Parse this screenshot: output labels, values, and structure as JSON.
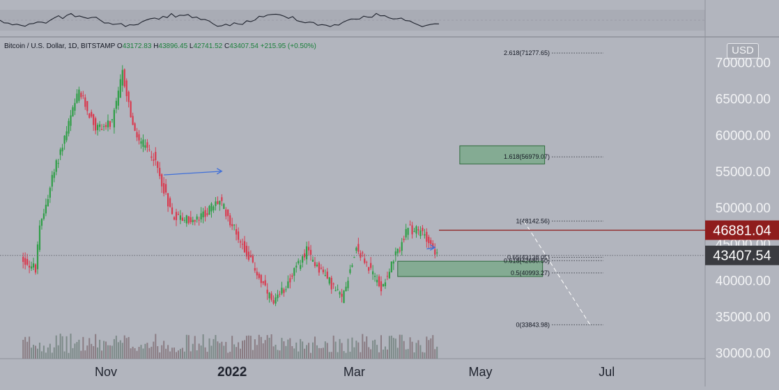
{
  "header": {
    "symbol": "Bitcoin / U.S. Dollar, 1D, BITSTAMP",
    "o_label": "O",
    "o_value": "43172.83",
    "h_label": "H",
    "h_value": "43896.45",
    "l_label": "L",
    "l_value": "42741.52",
    "c_label": "C",
    "c_value": "43407.54",
    "change": "+215.95 (+0.50%)"
  },
  "currency_button": "USD",
  "colors": {
    "background": "#b2b5be",
    "up": "#2e9e46",
    "down": "#d9394e",
    "price_label_bg": "#8f1d1d",
    "last_label_bg": "#3a3b40",
    "fib_box_fill": "#5fa36f",
    "arrow": "#3f6fd9"
  },
  "chart_data": {
    "type": "candlestick",
    "y_axis": {
      "ticks": [
        30000,
        35000,
        40000,
        45000,
        50000,
        55000,
        60000,
        65000,
        70000
      ],
      "tick_labels": [
        "30000.00",
        "35000.00",
        "40000.00",
        "45000.00",
        "50000.00",
        "55000.00",
        "60000.00",
        "65000.00",
        "70000.00"
      ],
      "ylim": [
        29000,
        73000
      ]
    },
    "x_axis": {
      "tick_labels": [
        "Nov",
        "2022",
        "Mar",
        "May",
        "Jul"
      ],
      "tick_dates": [
        "2021-11-01",
        "2022-01-01",
        "2022-03-01",
        "2022-05-01",
        "2022-07-01"
      ]
    },
    "price_path": [
      {
        "date": "2021-09-22",
        "price": 43000
      },
      {
        "date": "2021-09-29",
        "price": 41500
      },
      {
        "date": "2021-10-01",
        "price": 47000
      },
      {
        "date": "2021-10-07",
        "price": 54000
      },
      {
        "date": "2021-10-15",
        "price": 61500
      },
      {
        "date": "2021-10-20",
        "price": 66000
      },
      {
        "date": "2021-10-28",
        "price": 61000
      },
      {
        "date": "2021-11-05",
        "price": 61500
      },
      {
        "date": "2021-11-10",
        "price": 68500
      },
      {
        "date": "2021-11-16",
        "price": 60000
      },
      {
        "date": "2021-11-25",
        "price": 57000
      },
      {
        "date": "2021-12-04",
        "price": 49000
      },
      {
        "date": "2021-12-15",
        "price": 48000
      },
      {
        "date": "2021-12-27",
        "price": 51000
      },
      {
        "date": "2022-01-05",
        "price": 46000
      },
      {
        "date": "2022-01-22",
        "price": 36500
      },
      {
        "date": "2022-02-07",
        "price": 44000
      },
      {
        "date": "2022-02-24",
        "price": 37500
      },
      {
        "date": "2022-03-03",
        "price": 44500
      },
      {
        "date": "2022-03-15",
        "price": 39000
      },
      {
        "date": "2022-03-28",
        "price": 47000
      },
      {
        "date": "2022-04-05",
        "price": 46500
      },
      {
        "date": "2022-04-11",
        "price": 43407.54
      }
    ],
    "horizontal_lines": [
      {
        "label": "46881.04",
        "value": 46881.04,
        "color": "#8f1d1d"
      },
      {
        "label": "43407.54",
        "value": 43407.54,
        "color": "#3a3b40"
      }
    ],
    "fibonacci": [
      {
        "label": "2.618(71277.65)",
        "value": 71277.65
      },
      {
        "label": "1.618(56979.07)",
        "value": 56979.07
      },
      {
        "label": "1(48142.56)",
        "value": 48142.56
      },
      {
        "label": "0.65(43138.05)",
        "value": 43138.05
      },
      {
        "label": "0.618(42680.50)",
        "value": 42680.5
      },
      {
        "label": "0.5(40993.27)",
        "value": 40993.27
      },
      {
        "label": "0(33843.98)",
        "value": 33843.98
      }
    ],
    "boxes": [
      {
        "y_top": 58500,
        "y_bottom": 56000,
        "date_start": "2022-04-21",
        "date_end": "2022-06-01"
      },
      {
        "y_top": 42600,
        "y_bottom": 40500,
        "date_start": "2022-03-22",
        "date_end": "2022-05-31"
      }
    ],
    "arrows": [
      {
        "from": {
          "date": "2021-11-29",
          "price": 54500
        },
        "to": {
          "date": "2021-12-27",
          "price": 55000
        }
      },
      {
        "from": {
          "date": "2022-04-05",
          "price": 44300
        },
        "to": {
          "date": "2022-04-09",
          "price": 44500
        }
      }
    ],
    "dashed_projection": {
      "from": {
        "date": "2022-05-22",
        "price": 48142.56
      },
      "to": {
        "date": "2022-06-23",
        "price": 33843.98
      }
    },
    "volume": "bars along bottom of price pane",
    "oscillator_pane": "wavy line in top strip"
  }
}
